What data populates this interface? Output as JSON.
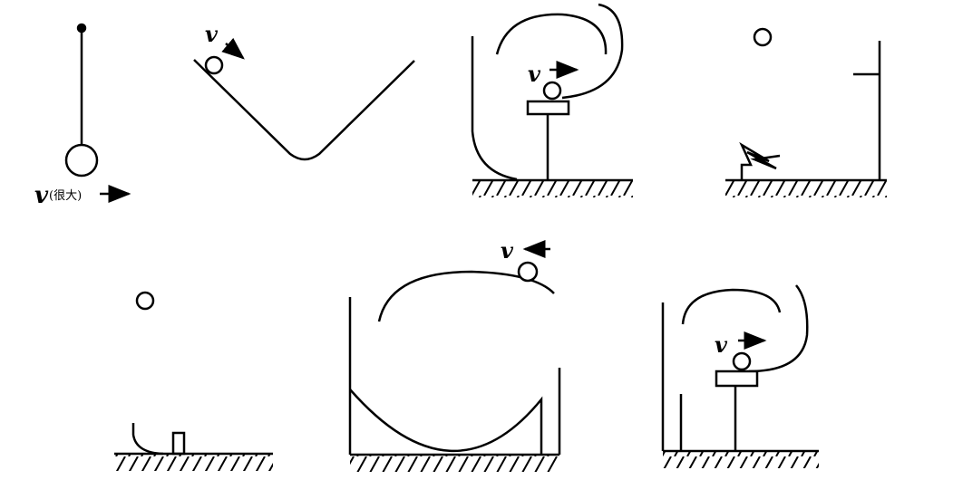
{
  "labels": {
    "velocity": "v",
    "very_large": "(很大)"
  },
  "colors": {
    "ink": "#000000",
    "background": "#ffffff"
  }
}
